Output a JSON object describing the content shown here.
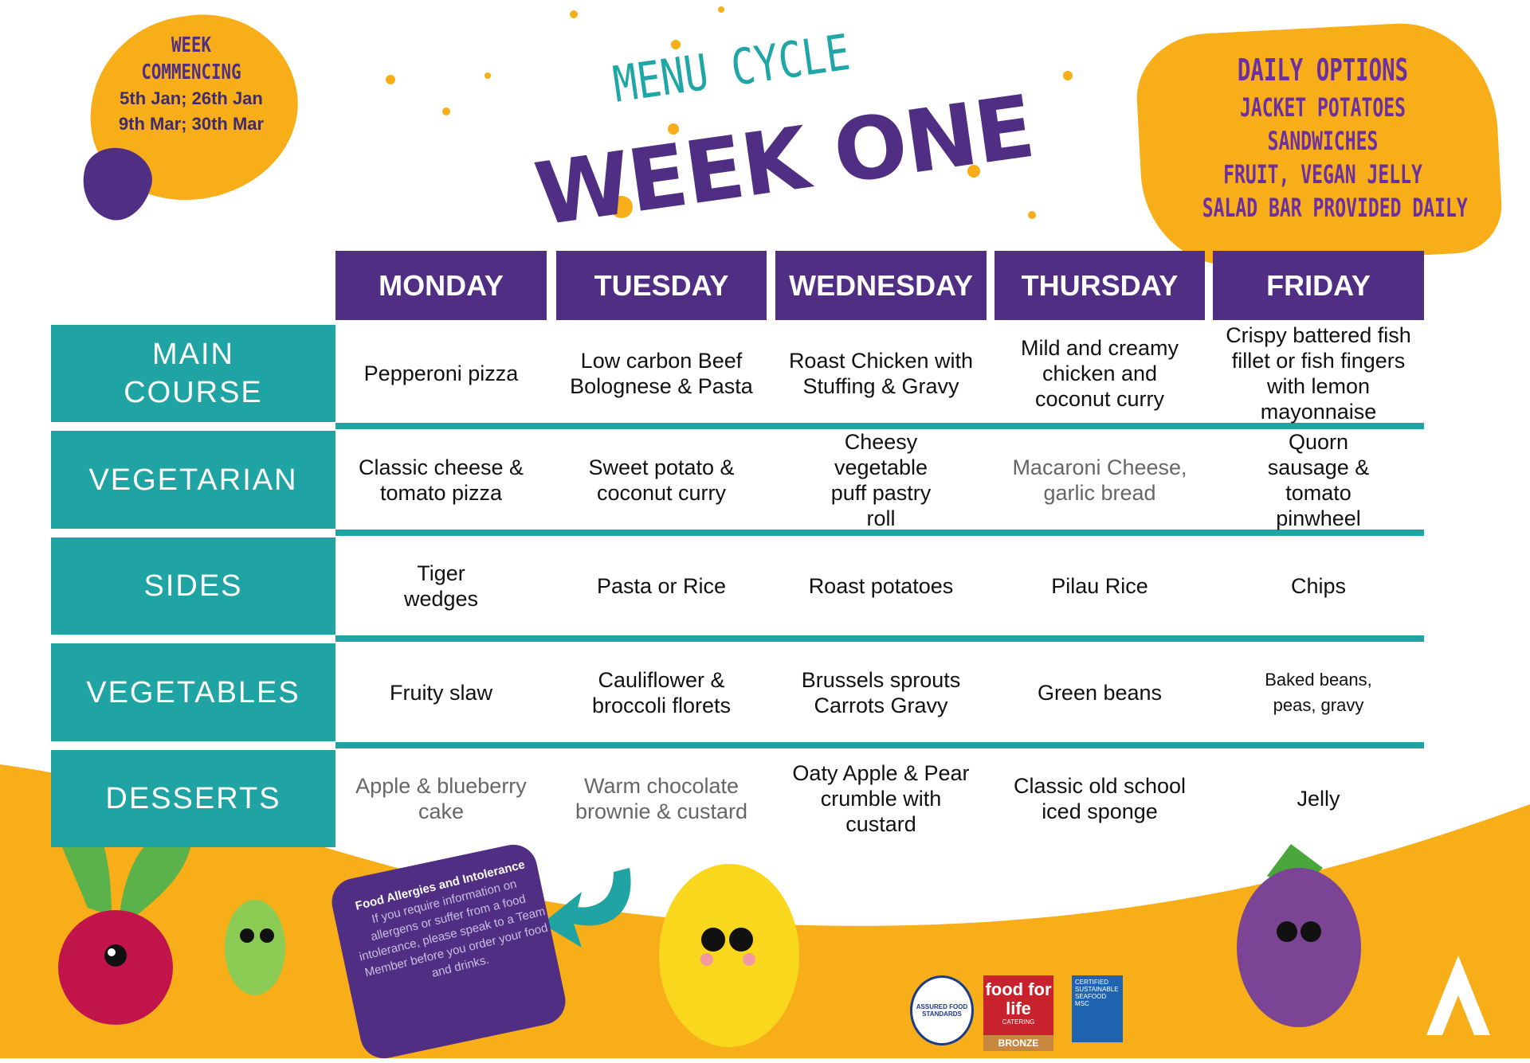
{
  "week_commencing": {
    "heading_line1": "WEEK",
    "heading_line2": "COMMENCING",
    "dates_line1": "5th Jan; 26th Jan",
    "dates_line2": "9th Mar; 30th Mar"
  },
  "title": {
    "top": "MENU CYCLE",
    "main": "WEEK ONE"
  },
  "daily_options": {
    "heading": "DAILY OPTIONS",
    "items": [
      "JACKET POTATOES",
      "SANDWICHES",
      "FRUIT, VEGAN JELLY",
      "SALAD BAR PROVIDED DAILY"
    ]
  },
  "days": [
    "MONDAY",
    "TUESDAY",
    "WEDNESDAY",
    "THURSDAY",
    "FRIDAY"
  ],
  "rows": [
    {
      "label": "MAIN COURSE",
      "cells": [
        "Pepperoni pizza",
        "Low carbon Beef Bolognese & Pasta",
        "Roast Chicken with Stuffing & Gravy",
        "Mild and creamy chicken and coconut curry",
        "Crispy battered fish fillet or fish fingers with lemon mayonnaise"
      ]
    },
    {
      "label": "VEGETARIAN",
      "cells": [
        "Classic cheese & tomato pizza",
        "Sweet potato & coconut curry",
        "Cheesy vegetable puff pastry roll",
        "Macaroni Cheese, garlic bread",
        "Quorn sausage & tomato pinwheel"
      ]
    },
    {
      "label": "SIDES",
      "cells": [
        "Tiger wedges",
        "Pasta or Rice",
        "Roast potatoes",
        "Pilau Rice",
        "Chips"
      ]
    },
    {
      "label": "VEGETABLES",
      "cells": [
        "Fruity slaw",
        "Cauliflower & broccoli florets",
        "Brussels sprouts Carrots Gravy",
        "Green beans",
        "Baked beans, peas, gravy"
      ]
    },
    {
      "label": "DESSERTS",
      "cells": [
        "Apple & blueberry cake",
        "Warm chocolate brownie & custard",
        "Oaty Apple & Pear crumble with custard",
        "Classic old school iced sponge",
        "Jelly"
      ]
    }
  ],
  "allergy": {
    "title": "Food Allergies and Intolerance",
    "body": "If you require information on allergens or suffer from a food intolerance, please speak to a Team Member before you order your food and drinks."
  },
  "logos": {
    "assured": "ASSURED FOOD STANDARDS",
    "food_for_life": "food for life",
    "food_for_life_sub": "CATERING",
    "food_for_life_level": "BRONZE",
    "msc": "CERTIFIED SUSTAINABLE SEAFOOD MSC"
  },
  "colors": {
    "purple": "#4f2e83",
    "teal": "#1fa3a3",
    "orange": "#f7ae18"
  }
}
